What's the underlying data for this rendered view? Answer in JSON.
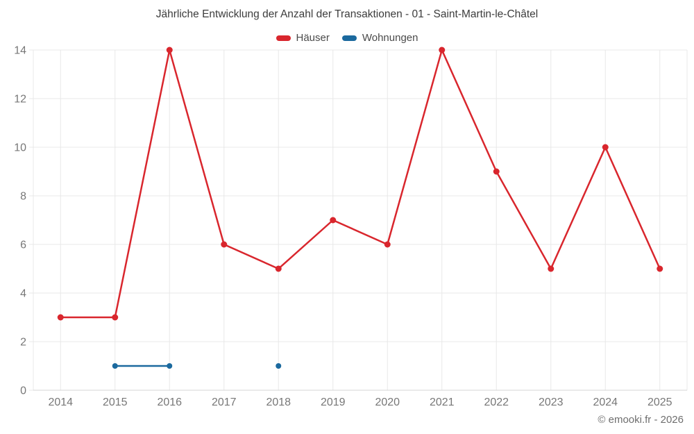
{
  "chart": {
    "title": "Jährliche Entwicklung der Anzahl der Transaktionen - 01 - Saint-Martin-le-Châtel",
    "footer": "© emooki.fr - 2026"
  },
  "chart_data": {
    "type": "line",
    "title": "Jährliche Entwicklung der Anzahl der Transaktionen - 01 - Saint-Martin-le-Châtel",
    "categories": [
      "2014",
      "2015",
      "2016",
      "2017",
      "2018",
      "2019",
      "2020",
      "2021",
      "2022",
      "2023",
      "2024",
      "2025"
    ],
    "series": [
      {
        "name": "Häuser",
        "slug": "haeuser",
        "color": "#d9262d",
        "marker_radius": 4.5,
        "values": [
          3,
          3,
          14,
          6,
          5,
          7,
          6,
          14,
          9,
          5,
          10,
          5
        ]
      },
      {
        "name": "Wohnungen",
        "slug": "wohnungen",
        "color": "#1b699e",
        "marker_radius": 4,
        "values": [
          null,
          1,
          1,
          null,
          1,
          null,
          null,
          null,
          null,
          null,
          null,
          null
        ]
      }
    ],
    "xlabel": "",
    "ylabel": "",
    "ylim": [
      0,
      14
    ],
    "yticks": [
      0,
      2,
      4,
      6,
      8,
      10,
      12,
      14
    ],
    "grid": true,
    "legend_position": "top",
    "grid_color": "#e8e8e8",
    "axis_line_color": "#d4d4d4",
    "axis_label_color": "#777777"
  }
}
